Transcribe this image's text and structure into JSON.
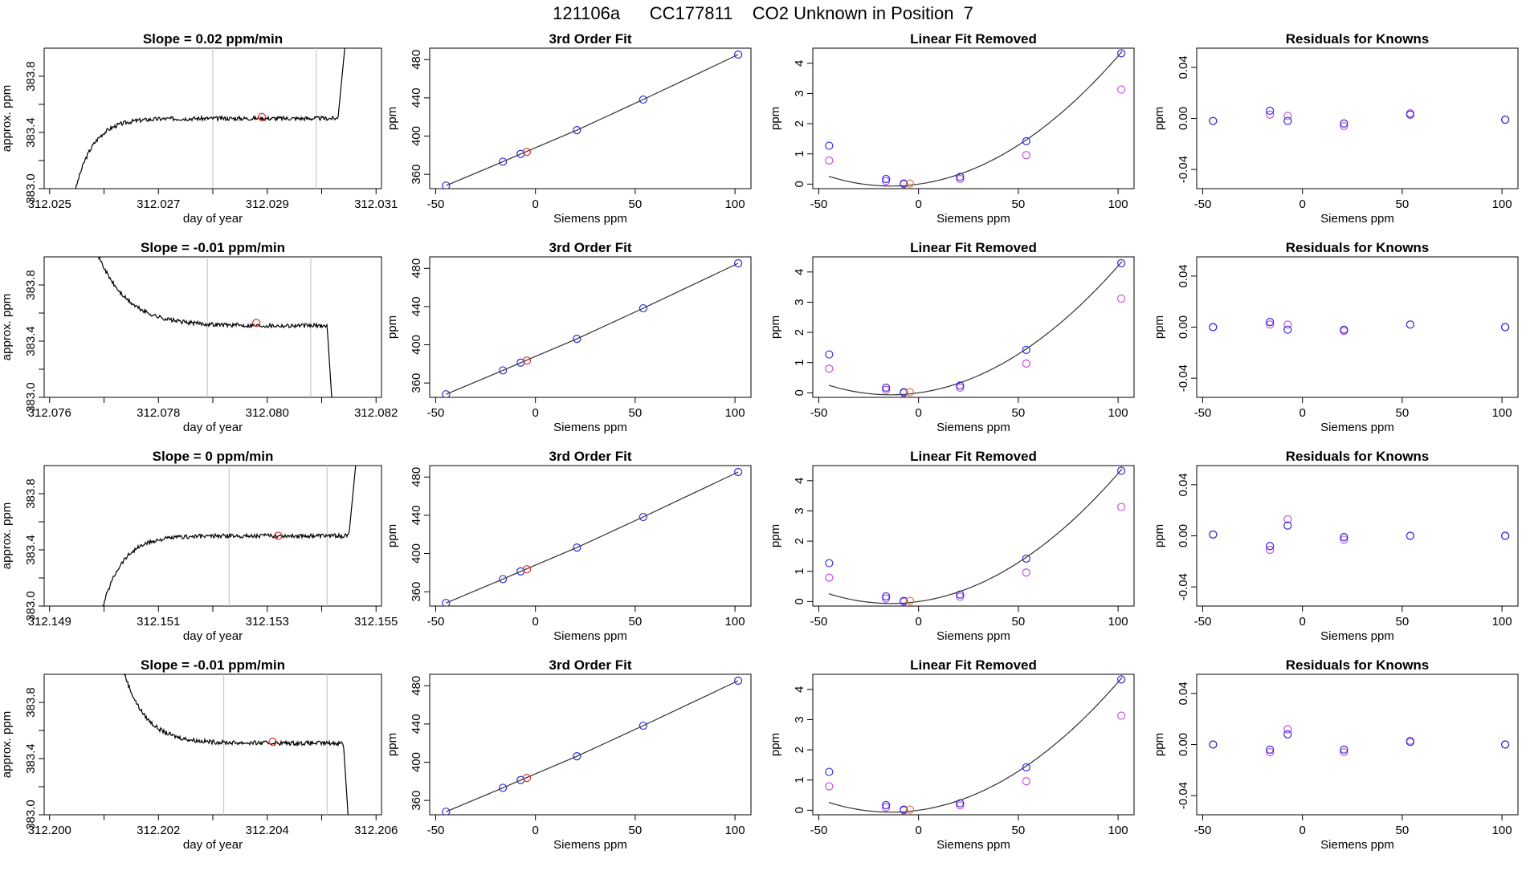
{
  "title": "121106a      CC177811    CO2 Unknown in Position  7",
  "colors": {
    "trace": "#000000",
    "marker": "#e0302a",
    "vline": "#c8c8c8",
    "fit": "#303030",
    "known": "#2b2bd8",
    "unknown": "#e87a3a",
    "alt": "#c44ee0"
  },
  "chart_data": [
    {
      "row": 1,
      "type": "line",
      "title": "Slope =  0.02  ppm/min",
      "xlabel": "day of year",
      "ylabel": "approx. ppm",
      "xticks": [
        "312.025",
        "312.027",
        "312.029",
        "312.031"
      ],
      "xlim": [
        312.0249,
        312.0311
      ],
      "ylim": [
        383.0,
        384.0
      ],
      "yticks": [
        "383.0",
        "383.4",
        "383.8"
      ],
      "vlines": [
        312.028,
        312.0299
      ],
      "marker": {
        "x": 312.0289,
        "y": 383.51
      },
      "shape": "rise",
      "level": 383.5,
      "t_start": 312.02545,
      "t_ramp_end": 312.0265,
      "t_jump": 312.0303
    },
    {
      "row": 1,
      "type": "scatter",
      "title": "3rd Order Fit",
      "xlabel": "Siemens ppm",
      "ylabel": "ppm",
      "xticks": [
        "-50",
        "0",
        "50",
        "100"
      ],
      "yticks": [
        "360",
        "400",
        "440",
        "480"
      ],
      "xlim": [
        -53,
        108
      ],
      "ylim": [
        345,
        492
      ],
      "knowns": {
        "x": [
          -44.8,
          -16.3,
          -7.4,
          20.8,
          54.0,
          101.6
        ],
        "y": [
          348.2,
          373.2,
          381.3,
          406.2,
          438.2,
          485.3
        ]
      },
      "unknown": {
        "x": -4.3,
        "y": 383.5
      }
    },
    {
      "row": 1,
      "type": "scatter",
      "title": "Linear Fit Removed",
      "xlabel": "Siemens ppm",
      "ylabel": "ppm",
      "xticks": [
        "-50",
        "0",
        "50",
        "100"
      ],
      "yticks": [
        "0",
        "1",
        "2",
        "3",
        "4"
      ],
      "xlim": [
        -53,
        108
      ],
      "ylim": [
        -0.15,
        4.5
      ],
      "knowns": {
        "x": [
          -44.8,
          -16.3,
          -7.4,
          20.8,
          54.0,
          101.6
        ],
        "y": [
          1.27,
          0.17,
          0.02,
          0.24,
          1.42,
          4.33
        ]
      },
      "alt": {
        "x": [
          -44.8,
          -16.3,
          -7.4,
          20.8,
          54.0,
          101.6
        ],
        "y": [
          0.78,
          0.1,
          0.0,
          0.17,
          0.96,
          3.13
        ]
      },
      "unknown": {
        "x": -4.3,
        "y": 0.02
      },
      "curve": {
        "a": 0.000332,
        "b": 0.0092,
        "c": 0.0
      }
    },
    {
      "row": 1,
      "type": "scatter",
      "title": "Residuals for Knowns",
      "xlabel": "Siemens ppm",
      "ylabel": "ppm",
      "xticks": [
        "-50",
        "0",
        "50",
        "100"
      ],
      "yticks": [
        "-0.04",
        "0.00",
        "0.04"
      ],
      "xlim": [
        -53,
        108
      ],
      "ylim": [
        -0.055,
        0.055
      ],
      "knowns": {
        "x": [
          -44.8,
          -16.3,
          -7.4,
          20.8,
          54.0,
          101.6
        ],
        "y": [
          -0.002,
          0.006,
          -0.002,
          -0.004,
          0.003,
          -0.001
        ]
      },
      "alt": {
        "x": [
          -44.8,
          -16.3,
          -7.4,
          20.8,
          54.0,
          101.6
        ],
        "y": [
          -0.002,
          0.003,
          0.002,
          -0.006,
          0.004,
          -0.001
        ]
      }
    },
    {
      "row": 2,
      "type": "line",
      "title": "Slope =  -0.01  ppm/min",
      "xlabel": "day of year",
      "ylabel": "approx. ppm",
      "xticks": [
        "312.076",
        "312.078",
        "312.080",
        "312.082"
      ],
      "xlim": [
        312.0759,
        312.0821
      ],
      "ylim": [
        383.0,
        384.0
      ],
      "yticks": [
        "383.0",
        "383.4",
        "383.8"
      ],
      "vlines": [
        312.0789,
        312.0808
      ],
      "marker": {
        "x": 312.0798,
        "y": 383.53
      },
      "shape": "fall",
      "level": 383.51,
      "t_start": 312.0768,
      "t_ramp_end": 312.0784,
      "t_jump": 312.0811
    },
    {
      "row": 2,
      "type": "scatter",
      "title": "3rd Order Fit",
      "xlabel": "Siemens ppm",
      "ylabel": "ppm",
      "xticks": [
        "-50",
        "0",
        "50",
        "100"
      ],
      "yticks": [
        "360",
        "400",
        "440",
        "480"
      ],
      "xlim": [
        -53,
        108
      ],
      "ylim": [
        345,
        492
      ],
      "knowns": {
        "x": [
          -44.8,
          -16.3,
          -7.4,
          20.8,
          54.0,
          101.6
        ],
        "y": [
          348.2,
          373.2,
          381.3,
          406.2,
          438.2,
          485.3
        ]
      },
      "unknown": {
        "x": -4.3,
        "y": 383.5
      }
    },
    {
      "row": 2,
      "type": "scatter",
      "title": "Linear Fit Removed",
      "xlabel": "Siemens ppm",
      "ylabel": "ppm",
      "xticks": [
        "-50",
        "0",
        "50",
        "100"
      ],
      "yticks": [
        "0",
        "1",
        "2",
        "3",
        "4"
      ],
      "xlim": [
        -53,
        108
      ],
      "ylim": [
        -0.15,
        4.5
      ],
      "knowns": {
        "x": [
          -44.8,
          -16.3,
          -7.4,
          20.8,
          54.0,
          101.6
        ],
        "y": [
          1.27,
          0.17,
          0.02,
          0.24,
          1.42,
          4.29
        ]
      },
      "alt": {
        "x": [
          -44.8,
          -16.3,
          -7.4,
          20.8,
          54.0,
          101.6
        ],
        "y": [
          0.8,
          0.1,
          0.0,
          0.17,
          0.97,
          3.12
        ]
      },
      "unknown": {
        "x": -4.3,
        "y": 0.02
      },
      "curve": {
        "a": 0.000328,
        "b": 0.0092,
        "c": 0.0
      }
    },
    {
      "row": 2,
      "type": "scatter",
      "title": "Residuals for Knowns",
      "xlabel": "Siemens ppm",
      "ylabel": "ppm",
      "xticks": [
        "-50",
        "0",
        "50",
        "100"
      ],
      "yticks": [
        "-0.04",
        "0.00",
        "0.04"
      ],
      "xlim": [
        -53,
        108
      ],
      "ylim": [
        -0.055,
        0.055
      ],
      "knowns": {
        "x": [
          -44.8,
          -16.3,
          -7.4,
          20.8,
          54.0,
          101.6
        ],
        "y": [
          0.0,
          0.004,
          -0.002,
          -0.002,
          0.002,
          0.0
        ]
      },
      "alt": {
        "x": [
          -44.8,
          -16.3,
          -7.4,
          20.8,
          54.0,
          101.6
        ],
        "y": [
          0.0,
          0.002,
          0.002,
          -0.003,
          0.002,
          0.0
        ]
      }
    },
    {
      "row": 3,
      "type": "line",
      "title": "Slope =  0  ppm/min",
      "xlabel": "day of year",
      "ylabel": "approx. ppm",
      "xticks": [
        "312.149",
        "312.151",
        "312.153",
        "312.155"
      ],
      "xlim": [
        312.1489,
        312.1551
      ],
      "ylim": [
        383.0,
        384.0
      ],
      "yticks": [
        "383.0",
        "383.4",
        "383.8"
      ],
      "vlines": [
        312.1523,
        312.1541
      ],
      "marker": {
        "x": 312.1532,
        "y": 383.5
      },
      "shape": "rise",
      "level": 383.5,
      "t_start": 312.14995,
      "t_ramp_end": 312.1511,
      "t_jump": 312.1545
    },
    {
      "row": 3,
      "type": "scatter",
      "title": "3rd Order Fit",
      "xlabel": "Siemens ppm",
      "ylabel": "ppm",
      "xticks": [
        "-50",
        "0",
        "50",
        "100"
      ],
      "yticks": [
        "360",
        "400",
        "440",
        "480"
      ],
      "xlim": [
        -53,
        108
      ],
      "ylim": [
        345,
        492
      ],
      "knowns": {
        "x": [
          -44.8,
          -16.3,
          -7.4,
          20.8,
          54.0,
          101.6
        ],
        "y": [
          348.2,
          373.2,
          381.3,
          406.2,
          438.2,
          485.3
        ]
      },
      "unknown": {
        "x": -4.3,
        "y": 383.5
      }
    },
    {
      "row": 3,
      "type": "scatter",
      "title": "Linear Fit Removed",
      "xlabel": "Siemens ppm",
      "ylabel": "ppm",
      "xticks": [
        "-50",
        "0",
        "50",
        "100"
      ],
      "yticks": [
        "0",
        "1",
        "2",
        "3",
        "4"
      ],
      "xlim": [
        -53,
        108
      ],
      "ylim": [
        -0.15,
        4.5
      ],
      "knowns": {
        "x": [
          -44.8,
          -16.3,
          -7.4,
          20.8,
          54.0,
          101.6
        ],
        "y": [
          1.27,
          0.17,
          0.02,
          0.23,
          1.42,
          4.33
        ]
      },
      "alt": {
        "x": [
          -44.8,
          -16.3,
          -7.4,
          20.8,
          54.0,
          101.6
        ],
        "y": [
          0.79,
          0.1,
          0.0,
          0.16,
          0.96,
          3.13
        ]
      },
      "unknown": {
        "x": -4.3,
        "y": 0.02
      },
      "curve": {
        "a": 0.000332,
        "b": 0.0092,
        "c": 0.0
      }
    },
    {
      "row": 3,
      "type": "scatter",
      "title": "Residuals for Knowns",
      "xlabel": "Siemens ppm",
      "ylabel": "ppm",
      "xticks": [
        "-50",
        "0",
        "50",
        "100"
      ],
      "yticks": [
        "-0.04",
        "0.00",
        "0.04"
      ],
      "xlim": [
        -53,
        108
      ],
      "ylim": [
        -0.055,
        0.055
      ],
      "knowns": {
        "x": [
          -44.8,
          -16.3,
          -7.4,
          20.8,
          54.0,
          101.6
        ],
        "y": [
          0.001,
          -0.008,
          0.008,
          -0.001,
          0.0,
          0.0
        ]
      },
      "alt": {
        "x": [
          -44.8,
          -16.3,
          -7.4,
          20.8,
          54.0,
          101.6
        ],
        "y": [
          0.001,
          -0.011,
          0.013,
          -0.003,
          0.0,
          0.0
        ]
      }
    },
    {
      "row": 4,
      "type": "line",
      "title": "Slope =  -0.01  ppm/min",
      "xlabel": "day of year",
      "ylabel": "approx. ppm",
      "xticks": [
        "312.200",
        "312.202",
        "312.204",
        "312.206"
      ],
      "xlim": [
        312.1999,
        312.2061
      ],
      "ylim": [
        383.0,
        384.0
      ],
      "yticks": [
        "383.0",
        "383.4",
        "383.8"
      ],
      "vlines": [
        312.2032,
        312.2051
      ],
      "marker": {
        "x": 312.2041,
        "y": 383.52
      },
      "shape": "fall",
      "level": 383.51,
      "t_start": 312.2013,
      "t_ramp_end": 312.2025,
      "t_jump": 312.2054
    },
    {
      "row": 4,
      "type": "scatter",
      "title": "3rd Order Fit",
      "xlabel": "Siemens ppm",
      "ylabel": "ppm",
      "xticks": [
        "-50",
        "0",
        "50",
        "100"
      ],
      "yticks": [
        "360",
        "400",
        "440",
        "480"
      ],
      "xlim": [
        -53,
        108
      ],
      "ylim": [
        345,
        492
      ],
      "knowns": {
        "x": [
          -44.8,
          -16.3,
          -7.4,
          20.8,
          54.0,
          101.6
        ],
        "y": [
          348.2,
          373.2,
          381.3,
          406.2,
          438.2,
          485.3
        ]
      },
      "unknown": {
        "x": -4.3,
        "y": 383.5
      }
    },
    {
      "row": 4,
      "type": "scatter",
      "title": "Linear Fit Removed",
      "xlabel": "Siemens ppm",
      "ylabel": "ppm",
      "xticks": [
        "-50",
        "0",
        "50",
        "100"
      ],
      "yticks": [
        "0",
        "1",
        "2",
        "3",
        "4"
      ],
      "xlim": [
        -53,
        108
      ],
      "ylim": [
        -0.15,
        4.5
      ],
      "knowns": {
        "x": [
          -44.8,
          -16.3,
          -7.4,
          20.8,
          54.0,
          101.6
        ],
        "y": [
          1.27,
          0.17,
          0.02,
          0.23,
          1.42,
          4.33
        ]
      },
      "alt": {
        "x": [
          -44.8,
          -16.3,
          -7.4,
          20.8,
          54.0,
          101.6
        ],
        "y": [
          0.79,
          0.1,
          0.0,
          0.16,
          0.96,
          3.13
        ]
      },
      "unknown": {
        "x": -4.3,
        "y": 0.02
      },
      "curve": {
        "a": 0.000332,
        "b": 0.0092,
        "c": 0.0
      }
    },
    {
      "row": 4,
      "type": "scatter",
      "title": "Residuals for Knowns",
      "xlabel": "Siemens ppm",
      "ylabel": "ppm",
      "xticks": [
        "-50",
        "0",
        "50",
        "100"
      ],
      "yticks": [
        "-0.04",
        "0.00",
        "0.04"
      ],
      "xlim": [
        -53,
        108
      ],
      "ylim": [
        -0.055,
        0.055
      ],
      "knowns": {
        "x": [
          -44.8,
          -16.3,
          -7.4,
          20.8,
          54.0,
          101.6
        ],
        "y": [
          0.0,
          -0.004,
          0.008,
          -0.004,
          0.002,
          0.0
        ]
      },
      "alt": {
        "x": [
          -44.8,
          -16.3,
          -7.4,
          20.8,
          54.0,
          101.6
        ],
        "y": [
          0.0,
          -0.006,
          0.012,
          -0.006,
          0.003,
          0.0
        ]
      }
    }
  ]
}
